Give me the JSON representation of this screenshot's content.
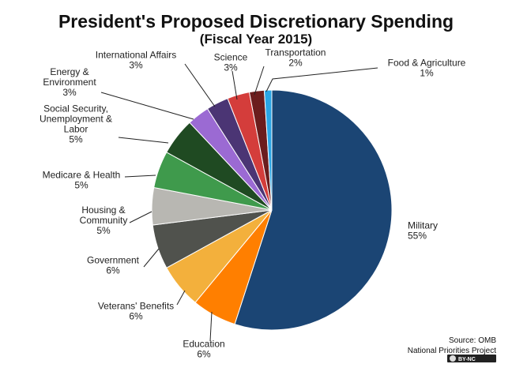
{
  "chart_data": {
    "type": "pie",
    "title": "President's Proposed Discretionary Spending",
    "subtitle": "(Fiscal Year 2015)",
    "slices": [
      {
        "name": "Military",
        "label_lines": [
          "Military",
          "55%"
        ],
        "value": 55,
        "color": "#1b4574"
      },
      {
        "name": "Education",
        "label_lines": [
          "Education",
          "6%"
        ],
        "value": 6,
        "color": "#ff7f00"
      },
      {
        "name": "Veterans' Benefits",
        "label_lines": [
          "Veterans' Benefits",
          "6%"
        ],
        "value": 6,
        "color": "#f3b03c"
      },
      {
        "name": "Government",
        "label_lines": [
          "Government",
          "6%"
        ],
        "value": 6,
        "color": "#50524d"
      },
      {
        "name": "Housing & Community",
        "label_lines": [
          "Housing  &",
          "Community",
          "5%"
        ],
        "value": 5,
        "color": "#b8b7b2"
      },
      {
        "name": "Medicare & Health",
        "label_lines": [
          "Medicare  & Health",
          "5%"
        ],
        "value": 5,
        "color": "#3f9a4c"
      },
      {
        "name": "Social Security, Unemployment & Labor",
        "label_lines": [
          "Social Security,",
          "Unemployment  &",
          "Labor",
          "5%"
        ],
        "value": 5,
        "color": "#1f4a22"
      },
      {
        "name": "Energy & Environment",
        "label_lines": [
          "Energy  &",
          "Environment",
          "3%"
        ],
        "value": 3,
        "color": "#9b6ad3"
      },
      {
        "name": "International Affairs",
        "label_lines": [
          "International  Affairs",
          "3%"
        ],
        "value": 3,
        "color": "#4b3574"
      },
      {
        "name": "Science",
        "label_lines": [
          "Science",
          "3%"
        ],
        "value": 3,
        "color": "#d43d3b"
      },
      {
        "name": "Transportation",
        "label_lines": [
          "Transportation",
          "2%"
        ],
        "value": 2,
        "color": "#6b1d1d"
      },
      {
        "name": "Food & Agriculture",
        "label_lines": [
          "Food  & Agriculture",
          "1%"
        ],
        "value": 1,
        "color": "#2aa6e6"
      }
    ]
  },
  "source": {
    "line1": "Source: OMB",
    "line2": "National Priorities Project",
    "license": "BY-NC"
  }
}
